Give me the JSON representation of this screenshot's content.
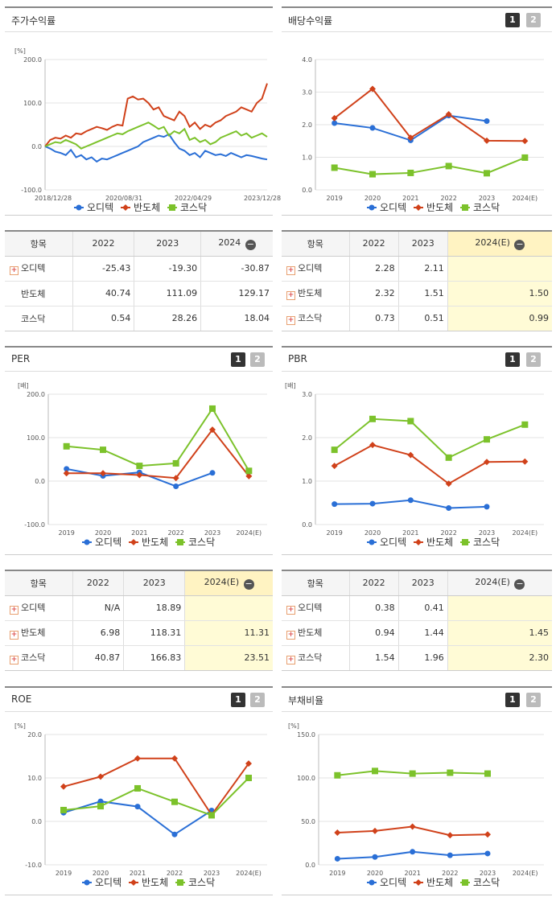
{
  "colors": {
    "odi": "#2a6fd6",
    "semi": "#d0411a",
    "kosdaq": "#7cc22b",
    "grid": "#e3e3e3"
  },
  "pager": {
    "p1": "1",
    "p2": "2"
  },
  "legend": [
    "오디텍",
    "반도체",
    "코스닥"
  ],
  "stock": {
    "title": "주가수익률",
    "chart_data": {
      "type": "line",
      "unit": "[%]",
      "ylim": [
        -100,
        200
      ],
      "yticks": [
        "200.0",
        "100.0",
        "0.0",
        "-100.0"
      ],
      "xticks": [
        "2018/12/28",
        "2020/08/31",
        "2022/04/29",
        "2023/12/28"
      ],
      "series": [
        {
          "name": "오디텍",
          "values": [
            0,
            -5,
            -12,
            -15,
            -20,
            -8,
            -25,
            -20,
            -30,
            -25,
            -35,
            -28,
            -30,
            -25,
            -20,
            -15,
            -10,
            -5,
            0,
            10,
            15,
            20,
            25,
            22,
            28,
            10,
            -5,
            -10,
            -20,
            -15,
            -25,
            -10,
            -15,
            -20,
            -18,
            -22,
            -15,
            -20,
            -25,
            -20,
            -22,
            -25,
            -28,
            -30
          ]
        },
        {
          "name": "반도체",
          "values": [
            0,
            15,
            20,
            18,
            25,
            20,
            30,
            28,
            35,
            40,
            45,
            42,
            38,
            45,
            50,
            48,
            110,
            115,
            108,
            110,
            100,
            85,
            90,
            70,
            65,
            60,
            80,
            70,
            45,
            55,
            40,
            50,
            45,
            55,
            60,
            70,
            75,
            80,
            90,
            85,
            80,
            100,
            110,
            145
          ]
        },
        {
          "name": "코스닥",
          "values": [
            0,
            5,
            10,
            8,
            15,
            10,
            5,
            -5,
            0,
            5,
            10,
            15,
            20,
            25,
            30,
            28,
            35,
            40,
            45,
            50,
            55,
            48,
            40,
            45,
            25,
            35,
            30,
            40,
            15,
            20,
            10,
            15,
            5,
            10,
            20,
            25,
            30,
            35,
            25,
            30,
            20,
            25,
            30,
            22
          ]
        }
      ]
    }
  },
  "stock_table": {
    "headers": [
      "항목",
      "2022",
      "2023",
      "2024"
    ],
    "rows": [
      [
        "오디텍",
        "-25.43",
        "-19.30",
        "-30.87"
      ],
      [
        "반도체",
        "40.74",
        "111.09",
        "129.17"
      ],
      [
        "코스닥",
        "0.54",
        "28.26",
        "18.04"
      ]
    ]
  },
  "dividend": {
    "title": "배당수익률",
    "chart_data": {
      "type": "line",
      "unit": "",
      "ylim": [
        0,
        4
      ],
      "yticks": [
        "4.0",
        "3.0",
        "2.0",
        "1.0",
        "0.0"
      ],
      "categories": [
        "2019",
        "2020",
        "2021",
        "2022",
        "2023",
        "2024(E)"
      ],
      "series": [
        {
          "name": "오디텍",
          "values": [
            2.05,
            1.9,
            1.52,
            2.28,
            2.11,
            null
          ]
        },
        {
          "name": "반도체",
          "values": [
            2.2,
            3.1,
            1.6,
            2.32,
            1.51,
            1.5
          ]
        },
        {
          "name": "코스닥",
          "values": [
            0.68,
            0.48,
            0.52,
            0.73,
            0.51,
            0.99
          ]
        }
      ]
    }
  },
  "dividend_table": {
    "headers": [
      "항목",
      "2022",
      "2023",
      "2024(E)"
    ],
    "rows": [
      [
        "오디텍",
        "2.28",
        "2.11",
        ""
      ],
      [
        "반도체",
        "2.32",
        "1.51",
        "1.50"
      ],
      [
        "코스닥",
        "0.73",
        "0.51",
        "0.99"
      ]
    ]
  },
  "per": {
    "title": "PER",
    "chart_data": {
      "type": "line",
      "unit": "[배]",
      "ylim": [
        -100,
        200
      ],
      "yticks": [
        "200.0",
        "100.0",
        "0.0",
        "-100.0"
      ],
      "categories": [
        "2019",
        "2020",
        "2021",
        "2022",
        "2023",
        "2024(E)"
      ],
      "series": [
        {
          "name": "오디텍",
          "values": [
            28,
            12,
            20,
            -12,
            18.89,
            null
          ]
        },
        {
          "name": "반도체",
          "values": [
            18,
            18,
            14,
            6.98,
            118.31,
            11.31
          ]
        },
        {
          "name": "코스닥",
          "values": [
            80,
            72,
            35,
            40.87,
            166.83,
            23.51
          ]
        }
      ]
    }
  },
  "per_table": {
    "headers": [
      "항목",
      "2022",
      "2023",
      "2024(E)"
    ],
    "rows": [
      [
        "오디텍",
        "N/A",
        "18.89",
        ""
      ],
      [
        "반도체",
        "6.98",
        "118.31",
        "11.31"
      ],
      [
        "코스닥",
        "40.87",
        "166.83",
        "23.51"
      ]
    ]
  },
  "pbr": {
    "title": "PBR",
    "chart_data": {
      "type": "line",
      "unit": "[배]",
      "ylim": [
        0,
        3
      ],
      "yticks": [
        "3.0",
        "2.0",
        "1.0",
        "0.0"
      ],
      "categories": [
        "2019",
        "2020",
        "2021",
        "2022",
        "2023",
        "2024(E)"
      ],
      "series": [
        {
          "name": "오디텍",
          "values": [
            0.47,
            0.48,
            0.56,
            0.38,
            0.41,
            null
          ]
        },
        {
          "name": "반도체",
          "values": [
            1.35,
            1.83,
            1.6,
            0.94,
            1.44,
            1.45
          ]
        },
        {
          "name": "코스닥",
          "values": [
            1.72,
            2.43,
            2.38,
            1.54,
            1.96,
            2.3
          ]
        }
      ]
    }
  },
  "pbr_table": {
    "headers": [
      "항목",
      "2022",
      "2023",
      "2024(E)"
    ],
    "rows": [
      [
        "오디텍",
        "0.38",
        "0.41",
        ""
      ],
      [
        "반도체",
        "0.94",
        "1.44",
        "1.45"
      ],
      [
        "코스닥",
        "1.54",
        "1.96",
        "2.30"
      ]
    ]
  },
  "roe": {
    "title": "ROE",
    "chart_data": {
      "type": "line",
      "unit": "[%]",
      "ylim": [
        -10,
        20
      ],
      "yticks": [
        "20.0",
        "10.0",
        "0.0",
        "-10.0"
      ],
      "categories": [
        "2019",
        "2020",
        "2021",
        "2022",
        "2023",
        "2024(E)"
      ],
      "series": [
        {
          "name": "오디텍",
          "values": [
            2,
            4.6,
            3.4,
            -3,
            2.5,
            null
          ]
        },
        {
          "name": "반도체",
          "values": [
            8,
            10.3,
            14.5,
            14.5,
            1.5,
            13.3
          ]
        },
        {
          "name": "코스닥",
          "values": [
            2.6,
            3.5,
            7.6,
            4.5,
            1.4,
            10
          ]
        }
      ]
    }
  },
  "debt": {
    "title": "부채비율",
    "chart_data": {
      "type": "line",
      "unit": "[%]",
      "ylim": [
        0,
        150
      ],
      "yticks": [
        "150.0",
        "100.0",
        "50.0",
        "0.0"
      ],
      "categories": [
        "2019",
        "2020",
        "2021",
        "2022",
        "2023",
        "2024(E)"
      ],
      "series": [
        {
          "name": "오디텍",
          "values": [
            7,
            9,
            15,
            11,
            13,
            null
          ]
        },
        {
          "name": "반도체",
          "values": [
            37,
            39,
            44,
            34,
            35,
            null
          ]
        },
        {
          "name": "코스닥",
          "values": [
            103,
            108,
            105,
            106,
            105,
            null
          ]
        }
      ]
    }
  }
}
